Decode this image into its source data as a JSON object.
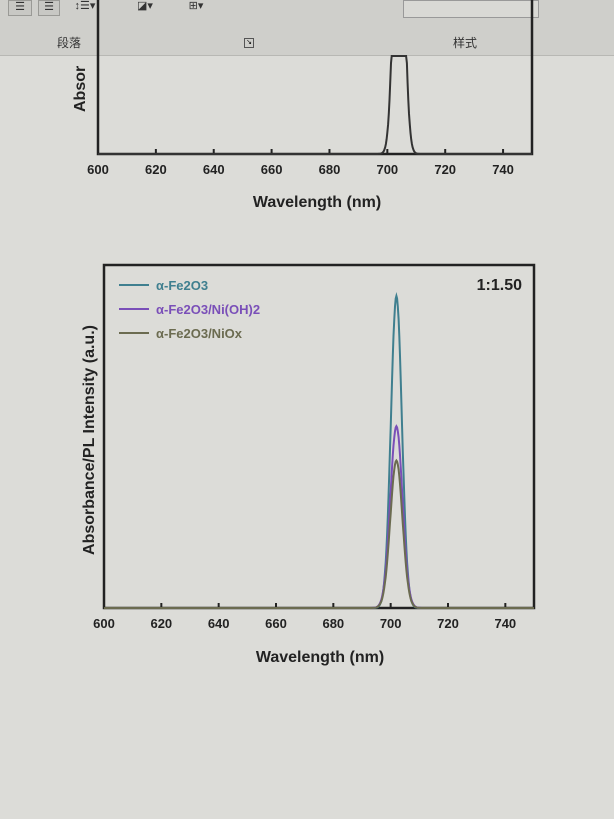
{
  "ribbon": {
    "paragraph_label": "段落",
    "styles_label": "样式",
    "icons": [
      "align-left-icon",
      "align-justify-icon",
      "line-spacing-icon",
      "shading-icon",
      "borders-icon",
      "dialog-launcher-icon"
    ]
  },
  "chart_data": [
    {
      "type": "line",
      "title": "",
      "xlabel": "Wavelength (nm)",
      "ylabel": "Absor",
      "xlim": [
        600,
        750
      ],
      "xticks": [
        600,
        620,
        640,
        660,
        680,
        700,
        720,
        740
      ],
      "grid": false,
      "series": [
        {
          "color": "#333333",
          "peak_x": 704,
          "peak_y": 1.0,
          "fwhm": 4
        }
      ]
    },
    {
      "type": "line",
      "title": "",
      "annotation": "1:1.50",
      "xlabel": "Wavelength (nm)",
      "ylabel": "Absorbance/PL Intensity (a.u.)",
      "xlim": [
        600,
        750
      ],
      "ylim": [
        0,
        1
      ],
      "xticks": [
        600,
        620,
        640,
        660,
        680,
        700,
        720,
        740
      ],
      "grid": false,
      "legend": "top-left",
      "series": [
        {
          "name": "α-Fe2O3",
          "color": "#3f7f8f",
          "peak_x": 702,
          "peak_y": 0.91,
          "fwhm": 4.5
        },
        {
          "name": "α-Fe2O3/Ni(OH)2",
          "color": "#7a4fb8",
          "peak_x": 702,
          "peak_y": 0.53,
          "fwhm": 5
        },
        {
          "name": "α-Fe2O3/NiOx",
          "color": "#6b6b50",
          "peak_x": 702,
          "peak_y": 0.43,
          "fwhm": 5
        }
      ]
    }
  ]
}
